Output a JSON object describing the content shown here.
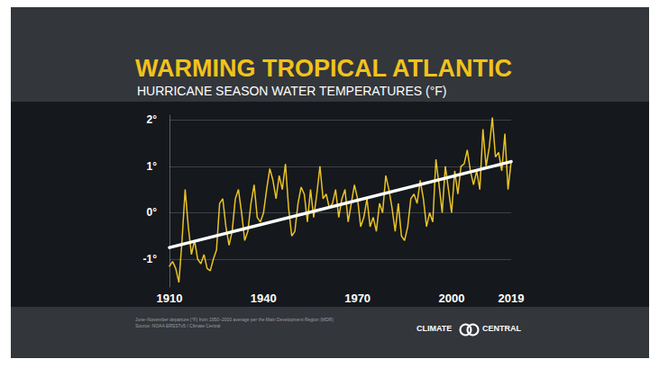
{
  "chart_data": {
    "type": "line",
    "title": "WARMING TROPICAL ATLANTIC",
    "subtitle": "HURRICANE SEASON WATER TEMPERATURES (°F)",
    "footnotes": [
      "June–November departure (°F) from 1950–2000 average per the Main Development Region (MDR)",
      "Source: NOAA ERSSTv5 / Climate Central"
    ],
    "logo": [
      "CLIMATE",
      "CENTRAL"
    ],
    "xlim": [
      1910,
      2019
    ],
    "xticks": [
      1910,
      1940,
      1970,
      2000,
      2019
    ],
    "ylim": [
      -1.6,
      2.1
    ],
    "yticks": [
      {
        "value": -1,
        "label": "-1°"
      },
      {
        "value": 0,
        "label": "0°"
      },
      {
        "value": 1,
        "label": "1°"
      },
      {
        "value": 2,
        "label": "2°"
      }
    ],
    "grid": true,
    "series": [
      {
        "type": "line",
        "color": "#e8c227",
        "x": [
          1910,
          1911,
          1912,
          1913,
          1914,
          1915,
          1916,
          1917,
          1918,
          1919,
          1920,
          1921,
          1922,
          1923,
          1924,
          1925,
          1926,
          1927,
          1928,
          1929,
          1930,
          1931,
          1932,
          1933,
          1934,
          1935,
          1936,
          1937,
          1938,
          1939,
          1940,
          1941,
          1942,
          1943,
          1944,
          1945,
          1946,
          1947,
          1948,
          1949,
          1950,
          1951,
          1952,
          1953,
          1954,
          1955,
          1956,
          1957,
          1958,
          1959,
          1960,
          1961,
          1962,
          1963,
          1964,
          1965,
          1966,
          1967,
          1968,
          1969,
          1970,
          1971,
          1972,
          1973,
          1974,
          1975,
          1976,
          1977,
          1978,
          1979,
          1980,
          1981,
          1982,
          1983,
          1984,
          1985,
          1986,
          1987,
          1988,
          1989,
          1990,
          1991,
          1992,
          1993,
          1994,
          1995,
          1996,
          1997,
          1998,
          1999,
          2000,
          2001,
          2002,
          2003,
          2004,
          2005,
          2006,
          2007,
          2008,
          2009,
          2010,
          2011,
          2012,
          2013,
          2014,
          2015,
          2016,
          2017,
          2018,
          2019
        ],
        "values": [
          -1.15,
          -1.05,
          -1.2,
          -1.5,
          -0.6,
          0.5,
          -0.3,
          -0.9,
          -0.6,
          -1.0,
          -1.1,
          -0.9,
          -1.2,
          -1.25,
          -1.0,
          -0.8,
          0.2,
          0.3,
          -0.3,
          -0.7,
          -0.4,
          0.3,
          0.5,
          0.0,
          -0.6,
          -0.4,
          0.2,
          0.6,
          -0.1,
          -0.2,
          0.0,
          0.5,
          0.95,
          0.7,
          0.3,
          0.8,
          0.5,
          1.05,
          0.1,
          -0.5,
          -0.4,
          0.2,
          0.55,
          0.4,
          -0.2,
          0.5,
          -0.1,
          0.4,
          1.0,
          0.3,
          0.4,
          0.1,
          0.2,
          0.5,
          -0.1,
          0.3,
          0.5,
          -0.2,
          0.2,
          0.6,
          0.3,
          -0.3,
          -0.1,
          0.3,
          -0.3,
          -0.1,
          -0.4,
          0.2,
          0.0,
          0.8,
          0.5,
          0.1,
          -0.4,
          0.2,
          -0.5,
          -0.6,
          -0.3,
          0.3,
          0.4,
          0.2,
          0.7,
          0.3,
          -0.3,
          0.0,
          -0.2,
          1.15,
          0.6,
          0.0,
          1.0,
          0.5,
          0.0,
          0.9,
          0.4,
          1.0,
          1.05,
          1.35,
          0.9,
          0.6,
          0.9,
          0.5,
          1.8,
          1.0,
          1.4,
          2.05,
          1.2,
          1.3,
          0.9,
          1.7,
          0.5,
          1.1
        ]
      },
      {
        "type": "line",
        "color": "#ffffff",
        "line_style": "trend",
        "x": [
          1910,
          2019
        ],
        "values": [
          -0.75,
          1.1
        ]
      }
    ]
  }
}
